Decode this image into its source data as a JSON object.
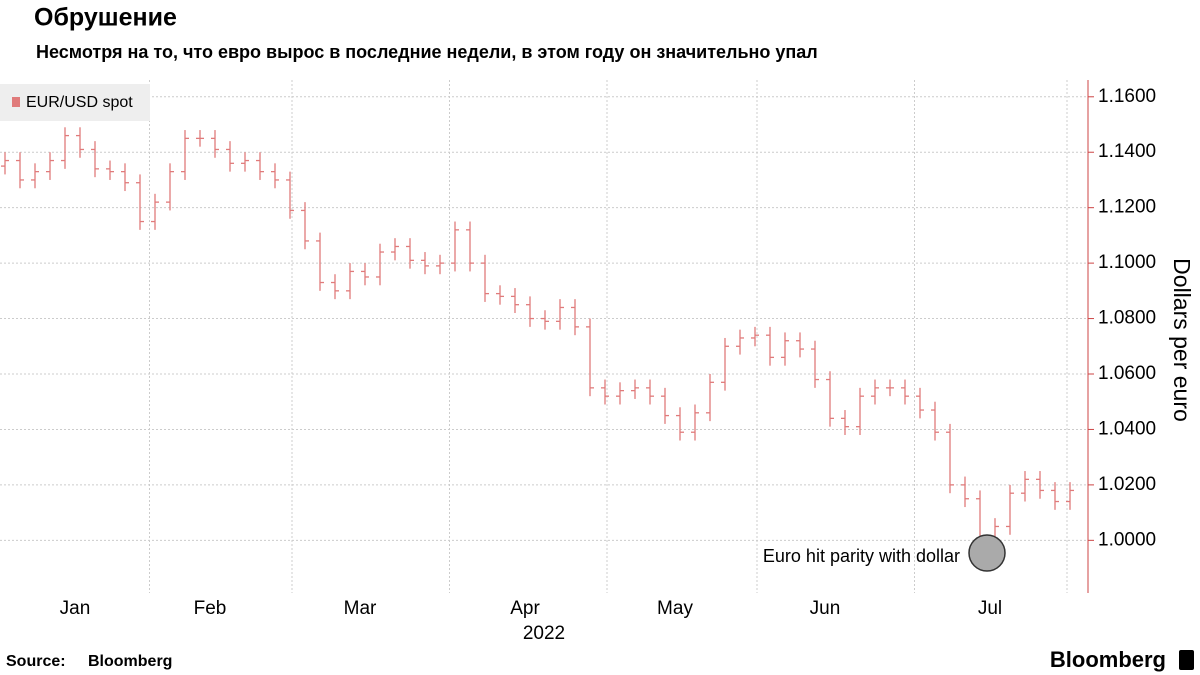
{
  "chart_data": {
    "type": "ohlc",
    "title": "Обрушение",
    "subtitle": "Несмотря на то, что евро вырос в последние недели, в этом году он значительно упал",
    "ylabel": "Dollars per euro",
    "xlabel": "2022",
    "annotation": "Euro hit parity with dollar",
    "source_label": "Source:",
    "source": "Bloomberg",
    "logo": "Bloomberg",
    "grid": true,
    "legend": "top-left",
    "categories": [
      null,
      null,
      null,
      null,
      null,
      "Jan",
      null,
      null,
      null,
      null,
      null,
      null,
      null,
      null,
      "Feb",
      null,
      null,
      null,
      null,
      null,
      null,
      null,
      null,
      null,
      "Mar",
      null,
      null,
      null,
      null,
      null,
      null,
      null,
      null,
      null,
      null,
      "Apr",
      null,
      null,
      null,
      null,
      null,
      null,
      null,
      null,
      null,
      "May",
      null,
      null,
      null,
      null,
      null,
      null,
      null,
      null,
      null,
      "Jun",
      null,
      null,
      null,
      null,
      null,
      null,
      null,
      null,
      null,
      null,
      "Jul",
      null,
      null,
      null,
      null,
      null
    ],
    "series": [
      {
        "name": "EUR/USD spot",
        "color": "#e07b7b",
        "open": [
          1.135,
          1.137,
          1.13,
          1.133,
          1.137,
          1.146,
          1.141,
          1.134,
          1.133,
          1.129,
          1.115,
          1.122,
          1.133,
          1.145,
          1.145,
          1.141,
          1.136,
          1.137,
          1.133,
          1.13,
          1.119,
          1.108,
          1.093,
          1.09,
          1.097,
          1.095,
          1.104,
          1.106,
          1.101,
          1.099,
          1.1,
          1.112,
          1.1,
          1.089,
          1.088,
          1.085,
          1.08,
          1.079,
          1.084,
          1.077,
          1.055,
          1.052,
          1.054,
          1.055,
          1.052,
          1.045,
          1.039,
          1.046,
          1.057,
          1.07,
          1.073,
          1.074,
          1.066,
          1.072,
          1.069,
          1.058,
          1.044,
          1.041,
          1.052,
          1.055,
          1.055,
          1.052,
          1.047,
          1.039,
          1.02,
          1.015,
          1.001,
          1.005,
          1.017,
          1.022,
          1.018,
          1.014
        ],
        "high": [
          1.14,
          1.14,
          1.136,
          1.14,
          1.149,
          1.149,
          1.144,
          1.137,
          1.136,
          1.132,
          1.125,
          1.136,
          1.148,
          1.148,
          1.148,
          1.144,
          1.14,
          1.14,
          1.136,
          1.133,
          1.122,
          1.111,
          1.096,
          1.1,
          1.1,
          1.107,
          1.109,
          1.109,
          1.104,
          1.103,
          1.115,
          1.115,
          1.103,
          1.092,
          1.091,
          1.088,
          1.083,
          1.087,
          1.087,
          1.08,
          1.058,
          1.057,
          1.058,
          1.058,
          1.055,
          1.048,
          1.049,
          1.06,
          1.073,
          1.076,
          1.077,
          1.077,
          1.075,
          1.075,
          1.072,
          1.061,
          1.047,
          1.055,
          1.058,
          1.058,
          1.058,
          1.055,
          1.05,
          1.042,
          1.023,
          1.018,
          1.008,
          1.02,
          1.025,
          1.025,
          1.021,
          1.021
        ],
        "low": [
          1.132,
          1.127,
          1.127,
          1.13,
          1.134,
          1.138,
          1.131,
          1.13,
          1.126,
          1.112,
          1.112,
          1.119,
          1.13,
          1.142,
          1.138,
          1.133,
          1.133,
          1.13,
          1.127,
          1.116,
          1.105,
          1.09,
          1.087,
          1.087,
          1.092,
          1.092,
          1.101,
          1.098,
          1.096,
          1.096,
          1.097,
          1.097,
          1.086,
          1.085,
          1.082,
          1.077,
          1.076,
          1.076,
          1.074,
          1.052,
          1.049,
          1.049,
          1.051,
          1.049,
          1.042,
          1.036,
          1.036,
          1.043,
          1.054,
          1.067,
          1.07,
          1.063,
          1.063,
          1.066,
          1.055,
          1.041,
          1.038,
          1.038,
          1.049,
          1.052,
          1.049,
          1.044,
          1.036,
          1.017,
          1.012,
          0.998,
          0.998,
          1.002,
          1.014,
          1.015,
          1.011,
          1.011
        ],
        "close": [
          1.137,
          1.13,
          1.133,
          1.137,
          1.146,
          1.141,
          1.134,
          1.133,
          1.129,
          1.115,
          1.122,
          1.133,
          1.145,
          1.145,
          1.141,
          1.136,
          1.137,
          1.133,
          1.13,
          1.119,
          1.108,
          1.093,
          1.09,
          1.097,
          1.095,
          1.104,
          1.106,
          1.101,
          1.099,
          1.1,
          1.112,
          1.1,
          1.089,
          1.088,
          1.085,
          1.08,
          1.079,
          1.084,
          1.077,
          1.055,
          1.052,
          1.054,
          1.055,
          1.052,
          1.045,
          1.039,
          1.046,
          1.057,
          1.07,
          1.073,
          1.074,
          1.066,
          1.072,
          1.069,
          1.058,
          1.044,
          1.041,
          1.052,
          1.055,
          1.055,
          1.052,
          1.047,
          1.039,
          1.02,
          1.015,
          1.001,
          1.005,
          1.017,
          1.022,
          1.018,
          1.014,
          1.018
        ]
      }
    ],
    "ylim": [
      0.981,
      1.164
    ],
    "yticks": [
      {
        "value": 1.0,
        "label": "1.0000"
      },
      {
        "value": 1.02,
        "label": "1.0200"
      },
      {
        "value": 1.04,
        "label": "1.0400"
      },
      {
        "value": 1.06,
        "label": "1.0600"
      },
      {
        "value": 1.08,
        "label": "1.0800"
      },
      {
        "value": 1.1,
        "label": "1.1000"
      },
      {
        "value": 1.12,
        "label": "1.1200"
      },
      {
        "value": 1.14,
        "label": "1.1400"
      },
      {
        "value": 1.16,
        "label": "1.1600"
      }
    ]
  }
}
